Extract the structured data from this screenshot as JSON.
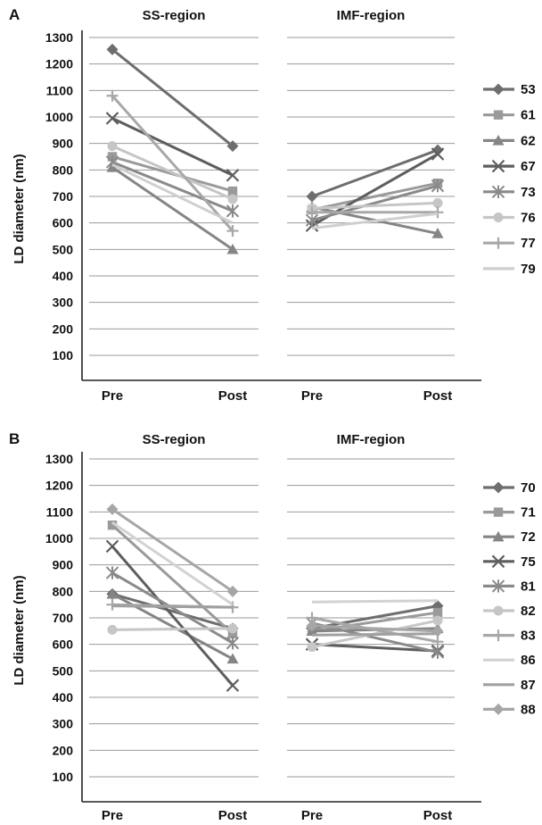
{
  "chart_data": [
    {
      "type": "line",
      "panel_label": "A",
      "ylabel": "LD diameter (nm)",
      "ylim": [
        0,
        1300
      ],
      "yticks": [
        100,
        200,
        300,
        400,
        500,
        600,
        700,
        800,
        900,
        1000,
        1100,
        1200,
        1300
      ],
      "grid": true,
      "legend_position": "right",
      "groups": [
        {
          "title": "SS-region",
          "x": [
            "Pre",
            "Post"
          ]
        },
        {
          "title": "IMF-region",
          "x": [
            "Pre",
            "Post"
          ]
        }
      ],
      "series": [
        {
          "name": "53",
          "marker": "diamond",
          "color": "#6e6e6e",
          "ss": [
            1255,
            890
          ],
          "imf": [
            700,
            875
          ]
        },
        {
          "name": "61",
          "marker": "square",
          "color": "#9a9a9a",
          "ss": [
            850,
            720
          ],
          "imf": [
            650,
            750
          ]
        },
        {
          "name": "62",
          "marker": "triangle",
          "color": "#858585",
          "ss": [
            810,
            500
          ],
          "imf": [
            660,
            560
          ]
        },
        {
          "name": "67",
          "marker": "x",
          "color": "#5e5e5e",
          "ss": [
            995,
            780
          ],
          "imf": [
            590,
            860
          ]
        },
        {
          "name": "73",
          "marker": "star",
          "color": "#8a8a8a",
          "ss": [
            830,
            645
          ],
          "imf": [
            610,
            740
          ]
        },
        {
          "name": "76",
          "marker": "circle",
          "color": "#c6c6c6",
          "ss": [
            890,
            690
          ],
          "imf": [
            655,
            675
          ]
        },
        {
          "name": "77",
          "marker": "plus",
          "color": "#a8a8a8",
          "ss": [
            1080,
            570
          ],
          "imf": [
            640,
            640
          ]
        },
        {
          "name": "79",
          "marker": "none",
          "color": "#cfcfcf",
          "ss": [
            820,
            600
          ],
          "imf": [
            580,
            635
          ]
        }
      ]
    },
    {
      "type": "line",
      "panel_label": "B",
      "ylabel": "LD diameter (nm)",
      "ylim": [
        0,
        1300
      ],
      "yticks": [
        100,
        200,
        300,
        400,
        500,
        600,
        700,
        800,
        900,
        1000,
        1100,
        1200,
        1300
      ],
      "grid": true,
      "legend_position": "right",
      "groups": [
        {
          "title": "SS-region",
          "x": [
            "Pre",
            "Post"
          ]
        },
        {
          "title": "IMF-region",
          "x": [
            "Pre",
            "Post"
          ]
        }
      ],
      "series": [
        {
          "name": "70",
          "marker": "diamond",
          "color": "#6e6e6e",
          "ss": [
            790,
            660
          ],
          "imf": [
            660,
            745
          ]
        },
        {
          "name": "71",
          "marker": "square",
          "color": "#9a9a9a",
          "ss": [
            1050,
            640
          ],
          "imf": [
            650,
            720
          ]
        },
        {
          "name": "72",
          "marker": "triangle",
          "color": "#858585",
          "ss": [
            790,
            545
          ],
          "imf": [
            650,
            660
          ]
        },
        {
          "name": "75",
          "marker": "x",
          "color": "#5e5e5e",
          "ss": [
            970,
            445
          ],
          "imf": [
            600,
            575
          ]
        },
        {
          "name": "81",
          "marker": "star",
          "color": "#8a8a8a",
          "ss": [
            870,
            605
          ],
          "imf": [
            680,
            570
          ]
        },
        {
          "name": "82",
          "marker": "circle",
          "color": "#c6c6c6",
          "ss": [
            655,
            660
          ],
          "imf": [
            590,
            690
          ]
        },
        {
          "name": "83",
          "marker": "plus",
          "color": "#a8a8a8",
          "ss": [
            750,
            740
          ],
          "imf": [
            700,
            610
          ]
        },
        {
          "name": "86",
          "marker": "none",
          "color": "#d2d2d2",
          "ss": [
            1060,
            750
          ],
          "imf": [
            760,
            765
          ]
        },
        {
          "name": "87",
          "marker": "none",
          "color": "#a0a0a0",
          "ss": [
            745,
            740
          ],
          "imf": [
            635,
            640
          ]
        },
        {
          "name": "88",
          "marker": "diamond",
          "color": "#a6a6a6",
          "ss": [
            1110,
            800
          ],
          "imf": [
            670,
            650
          ]
        }
      ]
    }
  ]
}
